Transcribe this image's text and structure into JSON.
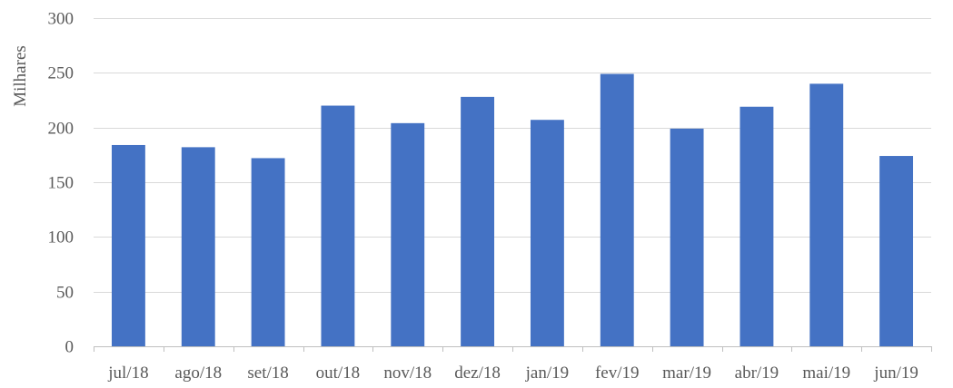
{
  "chart_data": {
    "type": "bar",
    "title": "",
    "xlabel": "",
    "ylabel": "Milhares",
    "categories": [
      "jul/18",
      "ago/18",
      "set/18",
      "out/18",
      "nov/18",
      "dez/18",
      "jan/19",
      "fev/19",
      "mar/19",
      "abr/19",
      "mai/19",
      "jun/19"
    ],
    "values": [
      184,
      182,
      172,
      220,
      204,
      228,
      207,
      249,
      199,
      219,
      240,
      174
    ],
    "ylim": [
      0,
      300
    ],
    "yticks": [
      0,
      50,
      100,
      150,
      200,
      250,
      300
    ],
    "grid": true,
    "legend": "none",
    "bar_color": "#4472C4",
    "grid_color": "#D9D9D9",
    "axis_color": "#BFBFBF",
    "text_color": "#595959"
  }
}
